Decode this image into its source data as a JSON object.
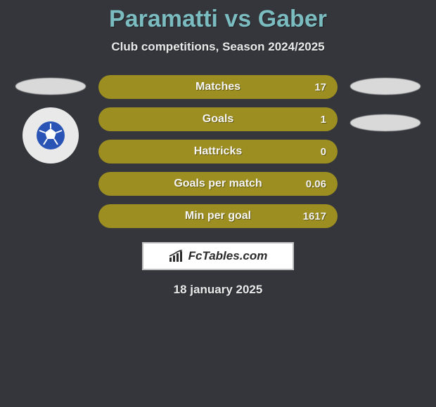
{
  "title": "Paramatti vs Gaber",
  "subtitle": "Club competitions, Season 2024/2025",
  "date": "18 january 2025",
  "brand": {
    "label": "FcTables.com"
  },
  "colors": {
    "background": "#34363b",
    "title_color": "#7bbcc0",
    "subtitle_color": "#e9e9e9",
    "stat_label_color": "#f5f5f5",
    "stat_value_color": "#f1f1f1",
    "date_color": "#eaeaea",
    "stat_bar_bg": "#9c8e20",
    "ellipse_left": "#d9d9d9",
    "ellipse_right": "#d9d9d9",
    "brand_box_bg": "#ffffff",
    "brand_box_border": "#bfbfbf",
    "brand_text_color": "#2a2a2a",
    "brand_icon_color": "#2a2a2a",
    "club_badge_bg": "#e9e9e9",
    "club_ball_bg": "#2954b6"
  },
  "layout": {
    "title_fontsize": 34,
    "subtitle_fontsize": 17,
    "stat_label_fontsize": 16,
    "stat_value_fontsize": 15,
    "date_fontsize": 17,
    "stat_bar_height": 34,
    "stat_bar_radius": 17,
    "stats_width": 340,
    "side_width": 100,
    "ellipse_width": 100,
    "ellipse_height": 24,
    "brand_box_width": 216,
    "brand_box_height": 40
  },
  "stats": [
    {
      "label": "Matches",
      "value": "17",
      "fill_pct": 100
    },
    {
      "label": "Goals",
      "value": "1",
      "fill_pct": 100
    },
    {
      "label": "Hattricks",
      "value": "0",
      "fill_pct": 100
    },
    {
      "label": "Goals per match",
      "value": "0.06",
      "fill_pct": 100
    },
    {
      "label": "Min per goal",
      "value": "1617",
      "fill_pct": 100
    }
  ],
  "left_side": {
    "show_club_badge": true
  },
  "right_side": {
    "show_club_badge": false
  }
}
